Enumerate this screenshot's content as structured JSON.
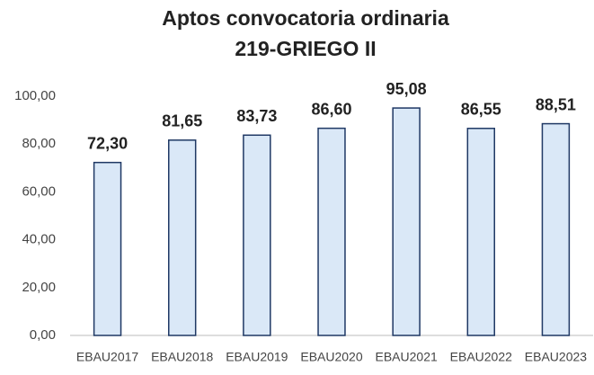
{
  "chart_data": {
    "type": "bar",
    "title": "Aptos convocatoria ordinaria",
    "subtitle": "219-GRIEGO II",
    "categories": [
      "EBAU2017",
      "EBAU2018",
      "EBAU2019",
      "EBAU2020",
      "EBAU2021",
      "EBAU2022",
      "EBAU2023"
    ],
    "values": [
      72.3,
      81.65,
      83.73,
      86.6,
      95.08,
      86.55,
      88.51
    ],
    "value_labels": [
      "72,30",
      "81,65",
      "83,73",
      "86,60",
      "95,08",
      "86,55",
      "88,51"
    ],
    "color": "#dae8f7",
    "edge_color": "#1f3864",
    "ylim": [
      0,
      100
    ],
    "yticks": [
      {
        "value": 0,
        "label": "0,00"
      },
      {
        "value": 20,
        "label": "20,00"
      },
      {
        "value": 40,
        "label": "40,00"
      },
      {
        "value": 60,
        "label": "60,00"
      },
      {
        "value": 80,
        "label": "80,00"
      },
      {
        "value": 100,
        "label": "100,00"
      }
    ],
    "grid": false
  }
}
